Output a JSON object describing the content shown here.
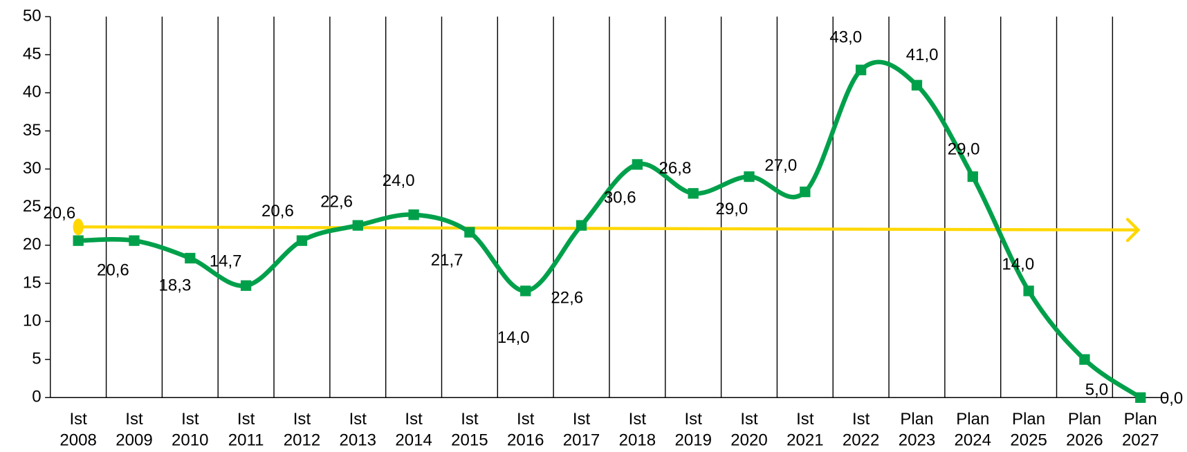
{
  "chart_data": {
    "type": "line",
    "categories": [
      [
        "Ist",
        "2008"
      ],
      [
        "Ist",
        "2009"
      ],
      [
        "Ist",
        "2010"
      ],
      [
        "Ist",
        "2011"
      ],
      [
        "Ist",
        "2012"
      ],
      [
        "Ist",
        "2013"
      ],
      [
        "Ist",
        "2014"
      ],
      [
        "Ist",
        "2015"
      ],
      [
        "Ist",
        "2016"
      ],
      [
        "Ist",
        "2017"
      ],
      [
        "Ist",
        "2018"
      ],
      [
        "Ist",
        "2019"
      ],
      [
        "Ist",
        "2020"
      ],
      [
        "Ist",
        "2021"
      ],
      [
        "Ist",
        "2022"
      ],
      [
        "Plan",
        "2023"
      ],
      [
        "Plan",
        "2024"
      ],
      [
        "Plan",
        "2025"
      ],
      [
        "Plan",
        "2026"
      ],
      [
        "Plan",
        "2027"
      ]
    ],
    "values": [
      20.6,
      20.6,
      18.3,
      14.7,
      20.6,
      22.6,
      24.0,
      21.7,
      14.0,
      22.6,
      30.6,
      26.8,
      29.0,
      27.0,
      43.0,
      41.0,
      29.0,
      14.0,
      5.0,
      0.0
    ],
    "value_labels": [
      "20,6",
      "20,6",
      "18,3",
      "14,7",
      "20,6",
      "22,6",
      "24,0",
      "21,7",
      "14,0",
      "22,6",
      "30,6",
      "26,8",
      "29,0",
      "27,0",
      "43,0",
      "41,0",
      "29,0",
      "14,0",
      "5,0",
      "0,0"
    ],
    "color": "#00a04b",
    "trend": {
      "values": [
        22.4,
        22.0
      ],
      "color": "#ffd700"
    },
    "ylim": [
      0,
      50
    ],
    "yticks": [
      0,
      5,
      10,
      15,
      20,
      25,
      30,
      35,
      40,
      45,
      50
    ]
  }
}
